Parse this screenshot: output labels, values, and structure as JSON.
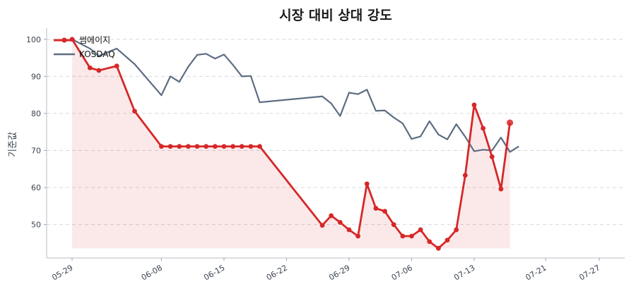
{
  "chart_data": {
    "type": "line",
    "title": "시장 대비 상대 강도",
    "xlabel": "",
    "ylabel": "기준값",
    "ylim": [
      41,
      103
    ],
    "yticks": [
      50,
      60,
      70,
      80,
      90,
      100
    ],
    "grid": true,
    "legend_position": "top-left",
    "x_tick_labels": [
      "05-29",
      "06-08",
      "06-15",
      "06-22",
      "06-29",
      "07-06",
      "07-13",
      "07-21",
      "07-27"
    ],
    "x": [
      "05-29",
      "05-30",
      "05-31",
      "06-01",
      "06-02",
      "06-03",
      "06-04",
      "06-05",
      "06-06",
      "06-07",
      "06-08",
      "06-09",
      "06-10",
      "06-11",
      "06-12",
      "06-13",
      "06-14",
      "06-15",
      "06-16",
      "06-17",
      "06-18",
      "06-19",
      "06-20",
      "06-21",
      "06-22",
      "06-23",
      "06-24",
      "06-25",
      "06-26",
      "06-27",
      "06-28",
      "06-29",
      "06-30",
      "07-01",
      "07-02",
      "07-03",
      "07-04",
      "07-05",
      "07-06",
      "07-07",
      "07-08",
      "07-09",
      "07-10",
      "07-11",
      "07-12",
      "07-13",
      "07-14",
      "07-15",
      "07-16",
      "07-17",
      "07-18",
      "07-19",
      "07-20",
      "07-21",
      "07-22",
      "07-23",
      "07-24",
      "07-25",
      "07-26",
      "07-27"
    ],
    "series": [
      {
        "name": "썸에이지",
        "color": "#d62728",
        "fill": true,
        "values": [
          100,
          92.3,
          91.6,
          92.8,
          80.6,
          71.1,
          71.1,
          71.1,
          71.1,
          71.1,
          71.1,
          71.1,
          71.1,
          71.1,
          71.1,
          71.1,
          71.1,
          49.8,
          52.4,
          50.6,
          48.6,
          46.9,
          61.0,
          54.4,
          53.6,
          50.0,
          46.9,
          46.9,
          48.6,
          45.4,
          43.6,
          45.8,
          48.6,
          63.3,
          82.3,
          76.0,
          68.3,
          59.6,
          77.5
        ],
        "x": [
          "05-29",
          "05-31",
          "06-01",
          "06-03",
          "06-05",
          "06-08",
          "06-09",
          "06-10",
          "06-11",
          "06-12",
          "06-13",
          "06-14",
          "06-15",
          "06-16",
          "06-17",
          "06-18",
          "06-19",
          "06-26",
          "06-27",
          "06-28",
          "06-29",
          "06-30",
          "07-01",
          "07-02",
          "07-03",
          "07-04",
          "07-05",
          "07-06",
          "07-07",
          "07-08",
          "07-09",
          "07-10",
          "07-11",
          "07-12",
          "07-13",
          "07-14",
          "07-15",
          "07-16",
          "07-17"
        ]
      },
      {
        "name": "KOSDAQ",
        "color": "#5d6d82",
        "fill": false,
        "values": [
          100,
          97.5,
          95.5,
          97.5,
          93.3,
          84.9,
          90.0,
          88.5,
          92.6,
          95.8,
          96.1,
          94.8,
          95.9,
          93.1,
          90.0,
          90.1,
          83.0,
          84.6,
          82.7,
          79.3,
          85.6,
          85.2,
          86.4,
          80.7,
          80.8,
          78.9,
          77.3,
          73.1,
          73.8,
          77.9,
          74.3,
          73.0,
          77.1,
          73.7,
          69.8,
          70.2,
          70.0,
          73.5,
          69.6,
          71.1
        ],
        "x": [
          "05-29",
          "05-31",
          "06-01",
          "06-03",
          "06-05",
          "06-08",
          "06-09",
          "06-10",
          "06-11",
          "06-12",
          "06-13",
          "06-14",
          "06-15",
          "06-16",
          "06-17",
          "06-18",
          "06-19",
          "06-26",
          "06-27",
          "06-28",
          "06-29",
          "06-30",
          "07-01",
          "07-02",
          "07-03",
          "07-04",
          "07-05",
          "07-06",
          "07-07",
          "07-08",
          "07-09",
          "07-10",
          "07-11",
          "07-12",
          "07-13",
          "07-14",
          "07-15",
          "07-16",
          "07-17",
          "07-18"
        ]
      }
    ]
  }
}
